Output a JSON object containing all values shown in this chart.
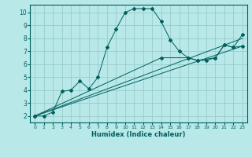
{
  "xlabel": "Humidex (Indice chaleur)",
  "bg_color": "#b8e8e8",
  "grid_color": "#99cccc",
  "line_color": "#005f5f",
  "xlim": [
    -0.5,
    23.5
  ],
  "ylim": [
    1.5,
    10.6
  ],
  "yticks": [
    2,
    3,
    4,
    5,
    6,
    7,
    8,
    9,
    10
  ],
  "xticks": [
    0,
    1,
    2,
    3,
    4,
    5,
    6,
    7,
    8,
    9,
    10,
    11,
    12,
    13,
    14,
    15,
    16,
    17,
    18,
    19,
    20,
    21,
    22,
    23
  ],
  "line1_x": [
    0,
    1,
    2,
    3,
    4,
    5,
    6,
    7,
    8,
    9,
    10,
    11,
    12,
    13,
    14,
    15,
    16,
    17,
    18,
    19,
    20,
    21,
    22,
    23
  ],
  "line1_y": [
    2.0,
    2.0,
    2.3,
    3.9,
    4.0,
    4.7,
    4.1,
    5.0,
    7.3,
    8.7,
    10.0,
    10.3,
    10.3,
    10.3,
    9.3,
    7.9,
    7.0,
    6.5,
    6.3,
    6.3,
    6.5,
    7.5,
    7.3,
    8.3
  ],
  "line2_x": [
    0,
    23
  ],
  "line2_y": [
    2.0,
    7.4
  ],
  "line3_x": [
    0,
    23
  ],
  "line3_y": [
    2.0,
    8.0
  ],
  "line4_x": [
    0,
    14,
    17,
    18,
    20,
    21,
    22,
    23
  ],
  "line4_y": [
    2.0,
    6.5,
    6.5,
    6.3,
    6.5,
    7.5,
    7.3,
    7.4
  ]
}
